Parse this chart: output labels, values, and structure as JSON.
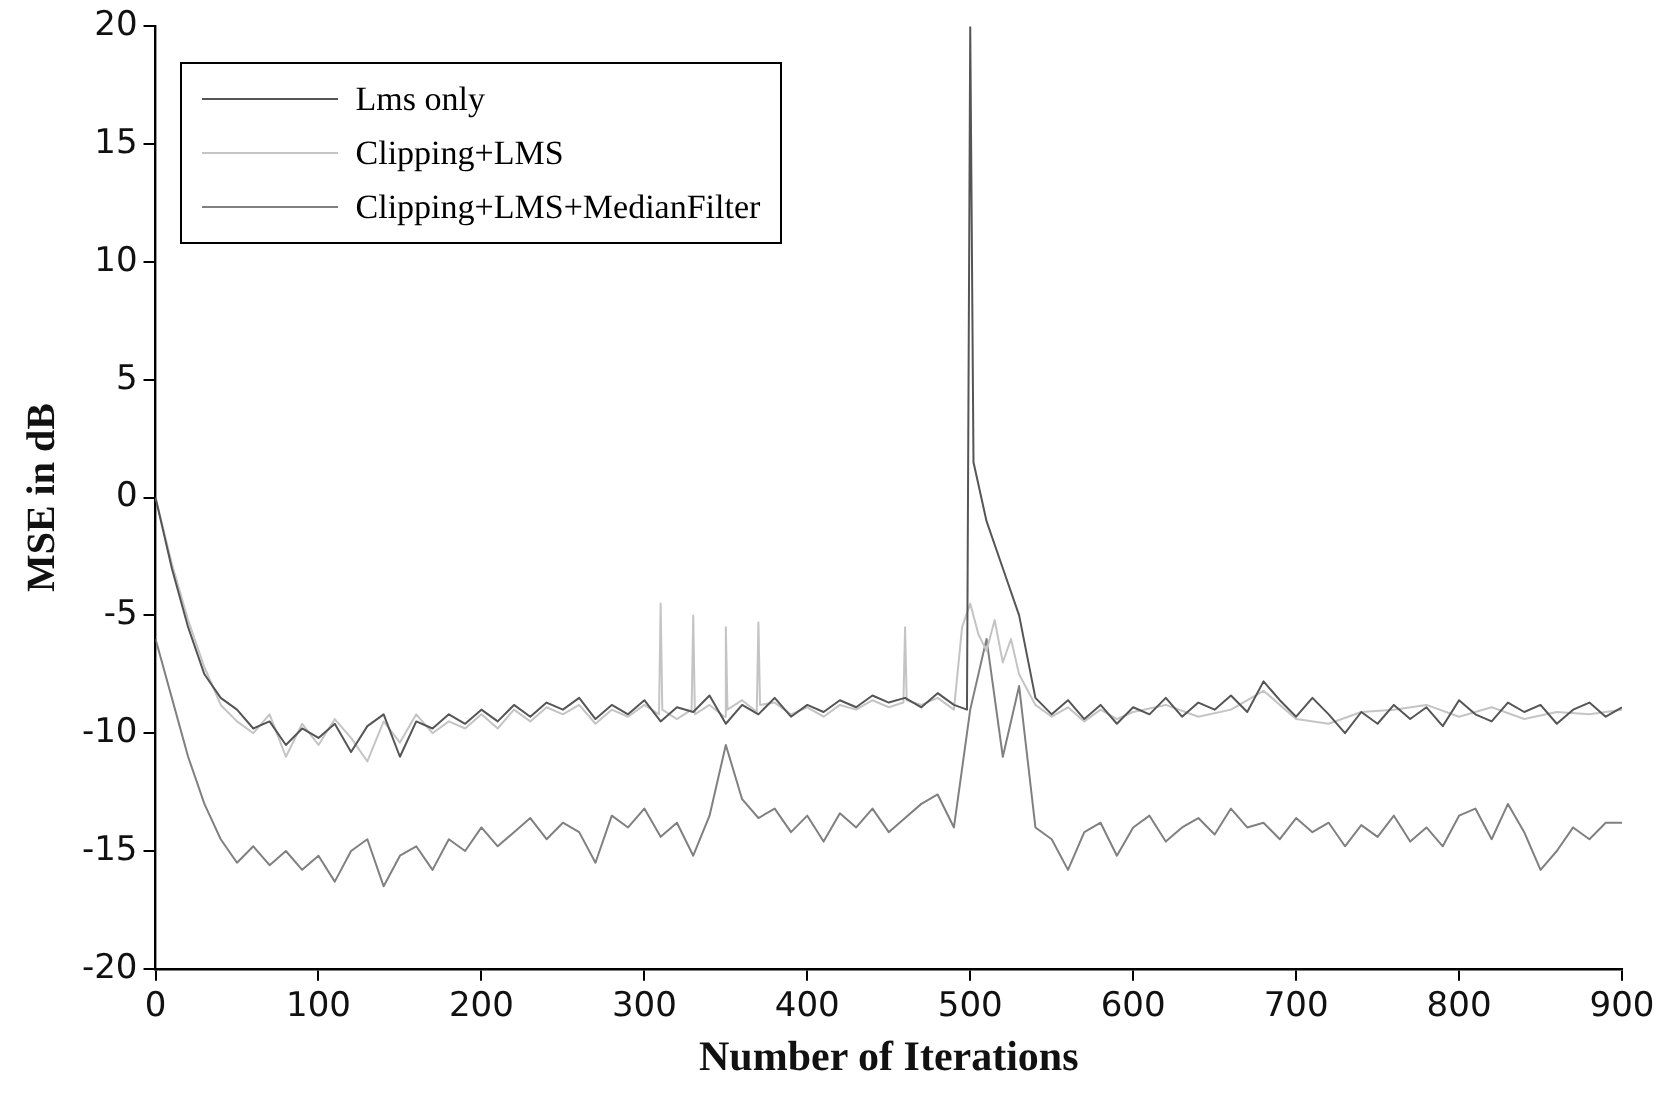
{
  "chart_data": {
    "type": "line",
    "xlabel": "Number of Iterations",
    "ylabel": "MSE in dB",
    "xlim": [
      0,
      900
    ],
    "ylim": [
      -20,
      20
    ],
    "xticks": [
      0,
      100,
      200,
      300,
      400,
      500,
      600,
      700,
      800,
      900
    ],
    "yticks": [
      -20,
      -15,
      -10,
      -5,
      0,
      5,
      10,
      15,
      20
    ],
    "grid": false,
    "legend": "top left",
    "marker": "none",
    "line_style": "solid",
    "series": [
      {
        "name": "Lms only",
        "color": "#555555",
        "x": [
          0,
          10,
          20,
          30,
          40,
          50,
          60,
          70,
          80,
          90,
          100,
          110,
          120,
          130,
          140,
          150,
          160,
          170,
          180,
          190,
          200,
          210,
          220,
          230,
          240,
          250,
          260,
          270,
          280,
          290,
          300,
          310,
          320,
          330,
          340,
          350,
          360,
          370,
          380,
          390,
          400,
          410,
          420,
          430,
          440,
          450,
          460,
          470,
          480,
          490,
          498,
          500,
          502,
          510,
          520,
          530,
          540,
          550,
          560,
          570,
          580,
          590,
          600,
          610,
          620,
          630,
          640,
          650,
          660,
          670,
          680,
          690,
          700,
          710,
          720,
          730,
          740,
          750,
          760,
          770,
          780,
          790,
          800,
          810,
          820,
          830,
          840,
          850,
          860,
          870,
          880,
          890,
          900
        ],
        "values": [
          0,
          -3,
          -5.5,
          -7.5,
          -8.5,
          -9,
          -9.8,
          -9.5,
          -10.5,
          -9.8,
          -10.2,
          -9.6,
          -10.8,
          -9.7,
          -9.2,
          -11,
          -9.5,
          -9.8,
          -9.2,
          -9.6,
          -9,
          -9.5,
          -8.8,
          -9.3,
          -8.7,
          -9,
          -8.5,
          -9.4,
          -8.8,
          -9.2,
          -8.6,
          -9.5,
          -8.9,
          -9.1,
          -8.4,
          -9.6,
          -8.8,
          -9.2,
          -8.5,
          -9.3,
          -8.8,
          -9.1,
          -8.6,
          -8.9,
          -8.4,
          -8.7,
          -8.5,
          -8.9,
          -8.3,
          -8.8,
          -9,
          20,
          1.5,
          -1,
          -3,
          -5,
          -8.5,
          -9.2,
          -8.6,
          -9.4,
          -8.8,
          -9.6,
          -8.9,
          -9.2,
          -8.5,
          -9.3,
          -8.7,
          -9,
          -8.4,
          -9.1,
          -7.8,
          -8.6,
          -9.3,
          -8.5,
          -9.2,
          -10,
          -9.1,
          -9.6,
          -8.8,
          -9.4,
          -8.9,
          -9.7,
          -8.6,
          -9.2,
          -9.5,
          -8.7,
          -9.1,
          -8.8,
          -9.6,
          -9,
          -8.7,
          -9.3,
          -8.9
        ]
      },
      {
        "name": "Clipping+LMS",
        "color": "#c4c4c4",
        "x": [
          0,
          10,
          20,
          30,
          40,
          50,
          60,
          70,
          80,
          90,
          100,
          110,
          120,
          130,
          140,
          150,
          160,
          170,
          180,
          190,
          200,
          210,
          220,
          230,
          240,
          250,
          260,
          270,
          280,
          290,
          300,
          309,
          310,
          311,
          320,
          329,
          330,
          331,
          340,
          349,
          350,
          351,
          360,
          369,
          370,
          371,
          380,
          390,
          400,
          410,
          420,
          430,
          440,
          450,
          459,
          460,
          461,
          470,
          480,
          490,
          495,
          500,
          505,
          510,
          515,
          520,
          525,
          530,
          540,
          550,
          560,
          570,
          580,
          590,
          600,
          620,
          640,
          660,
          680,
          700,
          720,
          740,
          760,
          780,
          800,
          820,
          840,
          860,
          880,
          900
        ],
        "values": [
          0,
          -2.8,
          -5.2,
          -7.2,
          -8.8,
          -9.5,
          -10,
          -9.2,
          -11,
          -9.6,
          -10.5,
          -9.4,
          -10.2,
          -11.2,
          -9.5,
          -10.4,
          -9.2,
          -10,
          -9.5,
          -9.8,
          -9.2,
          -9.8,
          -9,
          -9.5,
          -8.9,
          -9.2,
          -8.8,
          -9.6,
          -9,
          -9.3,
          -8.8,
          -9.2,
          -4.5,
          -9,
          -9.4,
          -9,
          -5,
          -9.2,
          -8.8,
          -9.3,
          -5.5,
          -9,
          -8.6,
          -9.1,
          -5.3,
          -8.8,
          -8.7,
          -9.2,
          -8.9,
          -9.3,
          -8.8,
          -9,
          -8.6,
          -8.9,
          -8.7,
          -5.5,
          -8.6,
          -8.8,
          -8.5,
          -9,
          -5.5,
          -4.5,
          -5.8,
          -6.5,
          -5.2,
          -7,
          -6,
          -7.5,
          -8.8,
          -9.3,
          -8.9,
          -9.5,
          -9,
          -9.4,
          -9.1,
          -8.8,
          -9.3,
          -9,
          -8.2,
          -9.4,
          -9.6,
          -9.1,
          -9,
          -8.8,
          -9.3,
          -8.9,
          -9.4,
          -9.1,
          -9.2,
          -9
        ]
      },
      {
        "name": "Clipping+LMS+MedianFilter",
        "color": "#808080",
        "x": [
          0,
          10,
          20,
          30,
          40,
          50,
          60,
          70,
          80,
          90,
          100,
          110,
          120,
          130,
          140,
          150,
          160,
          170,
          180,
          190,
          200,
          210,
          220,
          230,
          240,
          250,
          260,
          270,
          280,
          290,
          300,
          310,
          320,
          330,
          340,
          350,
          360,
          370,
          380,
          390,
          400,
          410,
          420,
          430,
          440,
          450,
          460,
          470,
          480,
          490,
          500,
          510,
          520,
          530,
          540,
          550,
          560,
          570,
          580,
          590,
          600,
          610,
          620,
          630,
          640,
          650,
          660,
          670,
          680,
          690,
          700,
          710,
          720,
          730,
          740,
          750,
          760,
          770,
          780,
          790,
          800,
          810,
          820,
          830,
          840,
          850,
          860,
          870,
          880,
          890,
          900
        ],
        "values": [
          -6,
          -8.5,
          -11,
          -13,
          -14.5,
          -15.5,
          -14.8,
          -15.6,
          -15,
          -15.8,
          -15.2,
          -16.3,
          -15,
          -14.5,
          -16.5,
          -15.2,
          -14.8,
          -15.8,
          -14.5,
          -15,
          -14,
          -14.8,
          -14.2,
          -13.6,
          -14.5,
          -13.8,
          -14.2,
          -15.5,
          -13.5,
          -14,
          -13.2,
          -14.4,
          -13.8,
          -15.2,
          -13.5,
          -10.5,
          -12.8,
          -13.6,
          -13.2,
          -14.2,
          -13.5,
          -14.6,
          -13.4,
          -14,
          -13.2,
          -14.2,
          -13.6,
          -13,
          -12.6,
          -14,
          -9,
          -6,
          -11,
          -8,
          -14,
          -14.5,
          -15.8,
          -14.2,
          -13.8,
          -15.2,
          -14,
          -13.5,
          -14.6,
          -14,
          -13.6,
          -14.3,
          -13.2,
          -14,
          -13.8,
          -14.5,
          -13.6,
          -14.2,
          -13.8,
          -14.8,
          -13.9,
          -14.4,
          -13.5,
          -14.6,
          -14,
          -14.8,
          -13.5,
          -13.2,
          -14.5,
          -13,
          -14.2,
          -15.8,
          -15,
          -14,
          -14.5,
          -13.8,
          -13.8
        ]
      }
    ]
  }
}
